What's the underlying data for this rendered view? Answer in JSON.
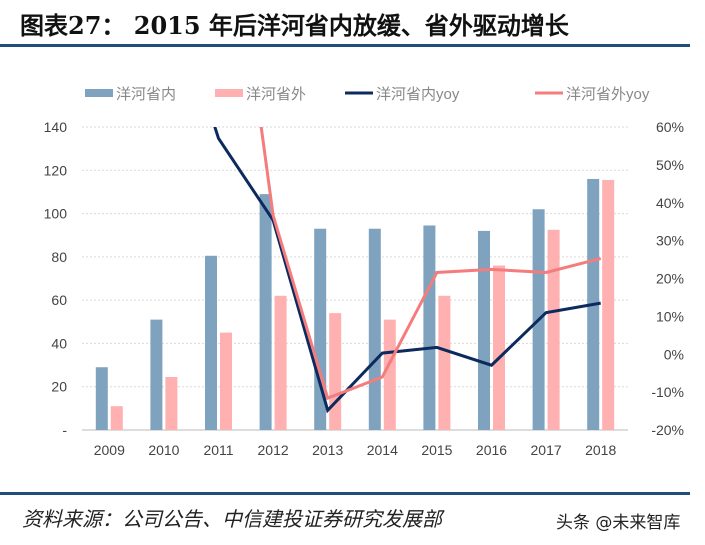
{
  "header": {
    "title": "图表27：  2015 年后洋河省内放缓、省外驱动增长"
  },
  "footer": {
    "source": "资料来源：公司公告、中信建投证券研究发展部",
    "watermark": "头条 @未来智库"
  },
  "chart_data": {
    "type": "bar+line",
    "categories": [
      "2009",
      "2010",
      "2011",
      "2012",
      "2013",
      "2014",
      "2015",
      "2016",
      "2017",
      "2018"
    ],
    "left_axis": {
      "ylim": [
        0,
        140
      ],
      "ticks": [
        "-",
        "20",
        "40",
        "60",
        "80",
        "100",
        "120",
        "140"
      ]
    },
    "right_axis": {
      "ylim": [
        -20,
        60
      ],
      "ticks": [
        "-20%",
        "-10%",
        "0%",
        "10%",
        "20%",
        "30%",
        "40%",
        "50%",
        "60%"
      ]
    },
    "grid": true,
    "legend": "top",
    "series": [
      {
        "name": "洋河省内",
        "kind": "bar",
        "axis": "left",
        "color": "#7fa3bf",
        "values": [
          29,
          51,
          80.5,
          109,
          93,
          93,
          94.5,
          92,
          102,
          116
        ]
      },
      {
        "name": "洋河省外",
        "kind": "bar",
        "axis": "left",
        "color": "#ffb0b0",
        "values": [
          11,
          24.5,
          45,
          62,
          54,
          51,
          62,
          76,
          92.5,
          115.5
        ]
      },
      {
        "name": "洋河省内yoy",
        "kind": "line",
        "axis": "right",
        "color": "#0d2a5e",
        "values": [
          null,
          null,
          57,
          35.4,
          -14.8,
          0.3,
          1.8,
          -2.9,
          11,
          13.5
        ]
      },
      {
        "name": "洋河省外yoy",
        "kind": "line",
        "axis": "right",
        "color": "#f47c7c",
        "values": [
          null,
          null,
          null,
          36.7,
          -11.6,
          -6,
          21.6,
          22.4,
          21.6,
          25.3
        ]
      }
    ]
  }
}
